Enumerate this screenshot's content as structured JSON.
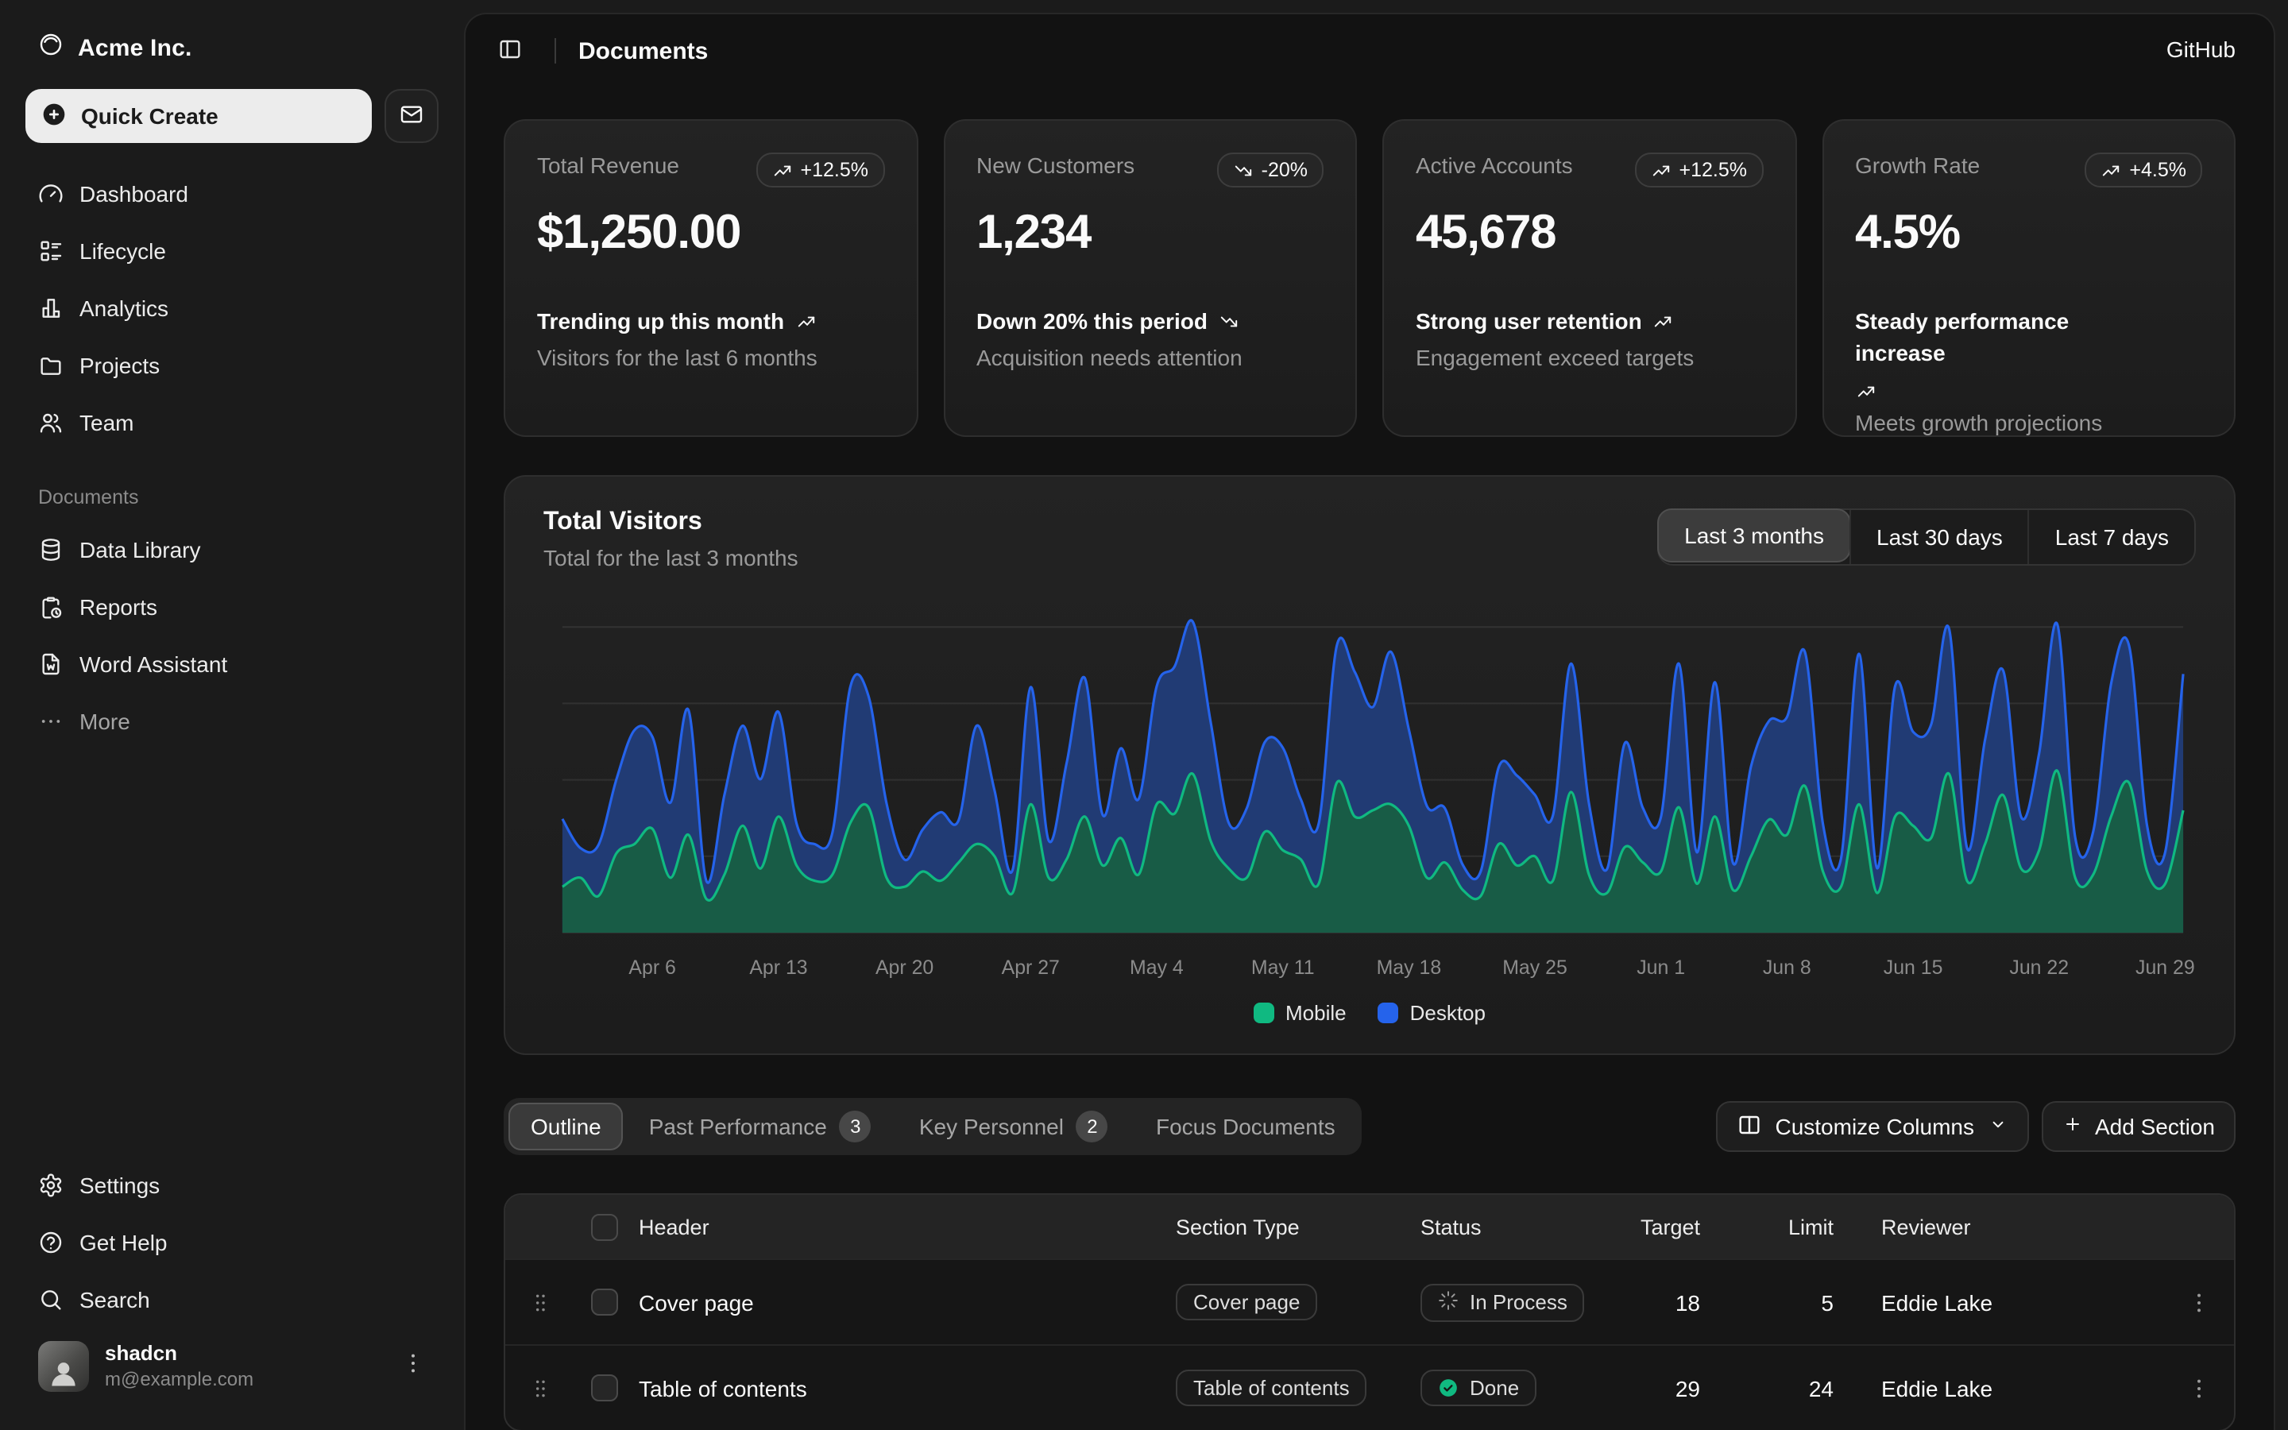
{
  "brand": {
    "name": "Acme Inc."
  },
  "sidebar": {
    "quick_create_label": "Quick Create",
    "nav": [
      {
        "label": "Dashboard",
        "icon": "gauge"
      },
      {
        "label": "Lifecycle",
        "icon": "list"
      },
      {
        "label": "Analytics",
        "icon": "chart-bar"
      },
      {
        "label": "Projects",
        "icon": "folder"
      },
      {
        "label": "Team",
        "icon": "users"
      }
    ],
    "documents_label": "Documents",
    "documents": [
      {
        "label": "Data Library",
        "icon": "database"
      },
      {
        "label": "Reports",
        "icon": "clipboard-clock"
      },
      {
        "label": "Word Assistant",
        "icon": "file-word"
      },
      {
        "label": "More",
        "icon": "ellipsis",
        "muted": true
      }
    ],
    "footer_nav": [
      {
        "label": "Settings",
        "icon": "gear"
      },
      {
        "label": "Get Help",
        "icon": "help-circle"
      },
      {
        "label": "Search",
        "icon": "search"
      }
    ],
    "user": {
      "name": "shadcn",
      "email": "m@example.com"
    }
  },
  "header": {
    "title": "Documents",
    "github_label": "GitHub"
  },
  "stats": [
    {
      "label": "Total Revenue",
      "badge": "+12.5%",
      "trend": "up",
      "value": "$1,250.00",
      "footnote": "Trending up this month",
      "subtext": "Visitors for the last 6 months"
    },
    {
      "label": "New Customers",
      "badge": "-20%",
      "trend": "down",
      "value": "1,234",
      "footnote": "Down 20% this period",
      "subtext": "Acquisition needs attention"
    },
    {
      "label": "Active Accounts",
      "badge": "+12.5%",
      "trend": "up",
      "value": "45,678",
      "footnote": "Strong user retention",
      "subtext": "Engagement exceed targets"
    },
    {
      "label": "Growth Rate",
      "badge": "+4.5%",
      "trend": "up",
      "value": "4.5%",
      "footnote": "Steady performance increase",
      "subtext": "Meets growth projections"
    }
  ],
  "visitors": {
    "title": "Total Visitors",
    "subtitle": "Total for the last 3 months",
    "ranges": [
      "Last 3 months",
      "Last 30 days",
      "Last 7 days"
    ],
    "selected_range": "Last 3 months"
  },
  "chart_data": {
    "type": "area",
    "stacked": true,
    "title": "Total Visitors",
    "x_start": "Apr 1",
    "x_end": "Jun 30",
    "x_tick_labels": [
      "Apr 6",
      "Apr 13",
      "Apr 20",
      "Apr 27",
      "May 4",
      "May 11",
      "May 18",
      "May 25",
      "Jun 1",
      "Jun 8",
      "Jun 15",
      "Jun 22",
      "Jun 29"
    ],
    "x_tick_indices": [
      5,
      12,
      19,
      26,
      33,
      40,
      47,
      54,
      61,
      68,
      75,
      82,
      89
    ],
    "ylim": [
      0,
      1050
    ],
    "grid_values": [
      250,
      500,
      750,
      1000
    ],
    "grid": true,
    "legend_position": "bottom",
    "series": [
      {
        "name": "Mobile",
        "color": "#10b981",
        "fill": "#185C46",
        "values": [
          150,
          180,
          120,
          260,
          290,
          340,
          180,
          320,
          110,
          190,
          350,
          210,
          380,
          220,
          170,
          190,
          360,
          410,
          180,
          150,
          200,
          170,
          230,
          290,
          250,
          130,
          420,
          180,
          240,
          380,
          220,
          310,
          190,
          420,
          390,
          520,
          300,
          210,
          180,
          330,
          270,
          240,
          160,
          490,
          380,
          400,
          420,
          350,
          180,
          230,
          140,
          120,
          290,
          220,
          250,
          170,
          460,
          190,
          130,
          280,
          230,
          200,
          410,
          160,
          380,
          140,
          250,
          370,
          320,
          480,
          200,
          150,
          420,
          130,
          380,
          350,
          310,
          520,
          170,
          290,
          450,
          210,
          270,
          530,
          180,
          190,
          380,
          490,
          200,
          160,
          400
        ]
      },
      {
        "name": "Desktop",
        "color": "#2563eb",
        "fill": "#213B74",
        "values": [
          222,
          97,
          167,
          242,
          373,
          301,
          245,
          409,
          59,
          261,
          327,
          292,
          342,
          137,
          120,
          138,
          446,
          364,
          243,
          89,
          137,
          224,
          138,
          387,
          215,
          75,
          383,
          122,
          315,
          454,
          165,
          293,
          247,
          385,
          481,
          498,
          388,
          149,
          227,
          293,
          335,
          197,
          197,
          448,
          473,
          338,
          499,
          315,
          235,
          177,
          82,
          81,
          252,
          294,
          201,
          213,
          420,
          233,
          78,
          340,
          178,
          178,
          470,
          103,
          439,
          88,
          294,
          323,
          385,
          438,
          155,
          92,
          492,
          81,
          426,
          307,
          371,
          475,
          107,
          341,
          408,
          169,
          317,
          480,
          132,
          141,
          434,
          448,
          149,
          103,
          446
        ]
      }
    ]
  },
  "toolbar": {
    "tabs": [
      {
        "label": "Outline",
        "selected": true
      },
      {
        "label": "Past Performance",
        "count": "3"
      },
      {
        "label": "Key Personnel",
        "count": "2"
      },
      {
        "label": "Focus Documents"
      }
    ],
    "customize_label": "Customize Columns",
    "add_label": "Add Section"
  },
  "table": {
    "columns": [
      "Header",
      "Section Type",
      "Status",
      "Target",
      "Limit",
      "Reviewer"
    ],
    "rows": [
      {
        "header": "Cover page",
        "type": "Cover page",
        "status": "In Process",
        "status_kind": "in-process",
        "target": "18",
        "limit": "5",
        "reviewer": "Eddie Lake"
      },
      {
        "header": "Table of contents",
        "type": "Table of contents",
        "status": "Done",
        "status_kind": "done",
        "target": "29",
        "limit": "24",
        "reviewer": "Eddie Lake"
      }
    ]
  }
}
